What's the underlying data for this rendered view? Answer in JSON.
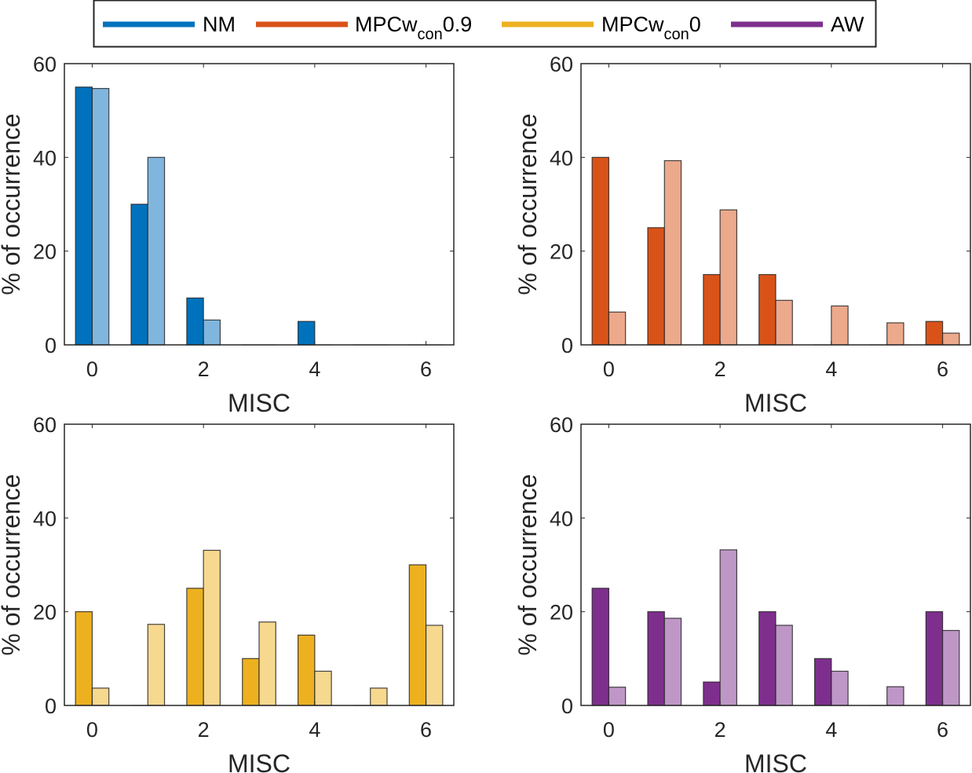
{
  "legend": {
    "entries": [
      {
        "name": "NM",
        "label_main": "NM",
        "label_sub": "",
        "label_tail": "",
        "color": "#0072BD"
      },
      {
        "name": "MPCwcon0.9",
        "label_main": "MPCw",
        "label_sub": "con",
        "label_tail": "0.9",
        "color": "#D95319"
      },
      {
        "name": "MPCwcon0",
        "label_main": "MPCw",
        "label_sub": "con",
        "label_tail": "0",
        "color": "#EDB120"
      },
      {
        "name": "AW",
        "label_main": "AW",
        "label_sub": "",
        "label_tail": "",
        "color": "#7E2F8E"
      }
    ],
    "placement": "top-center"
  },
  "chart_data": [
    {
      "type": "bar",
      "panel": "top-left",
      "method": "NM",
      "xlabel": "MISC",
      "ylabel": "% of occurrence",
      "categories": [
        0,
        1,
        2,
        3,
        4,
        5,
        6
      ],
      "xticks": [
        0,
        2,
        4,
        6
      ],
      "yticks": [
        0,
        20,
        40,
        60
      ],
      "xlim": [
        -0.5,
        6.5
      ],
      "ylim": [
        0,
        60
      ],
      "colors": {
        "dark": "#0072BD",
        "light": "#80B6DE"
      },
      "series": [
        {
          "name": "dark",
          "values": [
            55,
            30,
            10,
            0,
            5,
            0,
            0
          ]
        },
        {
          "name": "light",
          "values": [
            54.7,
            40,
            5.3,
            0,
            0,
            0,
            0
          ]
        }
      ]
    },
    {
      "type": "bar",
      "panel": "top-right",
      "method": "MPCwcon0.9",
      "xlabel": "MISC",
      "ylabel": "% of occurrence",
      "categories": [
        0,
        1,
        2,
        3,
        4,
        5,
        6
      ],
      "xticks": [
        0,
        2,
        4,
        6
      ],
      "yticks": [
        0,
        20,
        40,
        60
      ],
      "xlim": [
        -0.5,
        6.5
      ],
      "ylim": [
        0,
        60
      ],
      "colors": {
        "dark": "#D95319",
        "light": "#ECA98C"
      },
      "series": [
        {
          "name": "dark",
          "values": [
            40,
            25,
            15,
            15,
            0,
            0,
            5
          ]
        },
        {
          "name": "light",
          "values": [
            7.0,
            39.3,
            28.8,
            9.5,
            8.3,
            4.7,
            2.5
          ]
        }
      ]
    },
    {
      "type": "bar",
      "panel": "bottom-left",
      "method": "MPCwcon0",
      "xlabel": "MISC",
      "ylabel": "% of occurrence",
      "categories": [
        0,
        1,
        2,
        3,
        4,
        5,
        6
      ],
      "xticks": [
        0,
        2,
        4,
        6
      ],
      "yticks": [
        0,
        20,
        40,
        60
      ],
      "xlim": [
        -0.5,
        6.5
      ],
      "ylim": [
        0,
        60
      ],
      "colors": {
        "dark": "#EDB120",
        "light": "#F6D88F"
      },
      "series": [
        {
          "name": "dark",
          "values": [
            20,
            0,
            25,
            10,
            15,
            0,
            30
          ]
        },
        {
          "name": "light",
          "values": [
            3.7,
            17.3,
            33.1,
            17.8,
            7.3,
            3.7,
            17.1
          ]
        }
      ]
    },
    {
      "type": "bar",
      "panel": "bottom-right",
      "method": "AW",
      "xlabel": "MISC",
      "ylabel": "% of occurrence",
      "categories": [
        0,
        1,
        2,
        3,
        4,
        5,
        6
      ],
      "xticks": [
        0,
        2,
        4,
        6
      ],
      "yticks": [
        0,
        20,
        40,
        60
      ],
      "xlim": [
        -0.5,
        6.5
      ],
      "ylim": [
        0,
        60
      ],
      "colors": {
        "dark": "#7E2F8E",
        "light": "#BE97C6"
      },
      "series": [
        {
          "name": "dark",
          "values": [
            25,
            20,
            5,
            20,
            10,
            0,
            20
          ]
        },
        {
          "name": "light",
          "values": [
            3.9,
            18.6,
            33.2,
            17.1,
            7.3,
            4.0,
            16.0
          ]
        }
      ]
    }
  ]
}
